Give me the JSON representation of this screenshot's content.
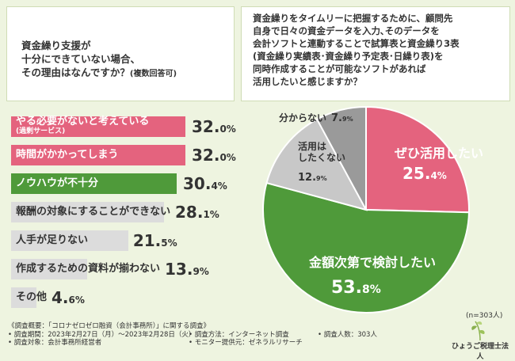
{
  "left_question": {
    "line1": "資金繰り支援が",
    "line2": "十分にできていない場合、",
    "line3": "その理由はなんですか？",
    "note": "(複数回答可)"
  },
  "right_question": {
    "text": "資金繰りをタイムリーに把握するために、顧問先\n自身で日々の資金データを入力､そのデータを\n会計ソフトと連動することで試算表と資金繰り3表\n(資金繰り実績表･資金繰り予定表･日繰り表)を\n同時作成することが可能なソフトがあれば\n活用したいと感じますか？"
  },
  "bars": [
    {
      "label": "やる必要がないと考えている",
      "sublabel": "(過剰サービス)",
      "value_main": "32.",
      "value_dec": "0%",
      "value": 32.0,
      "color": "#e4637e"
    },
    {
      "label": "時間がかかってしまう",
      "sublabel": "",
      "value_main": "32.",
      "value_dec": "0%",
      "value": 32.0,
      "color": "#e4637e"
    },
    {
      "label": "ノウハウが不十分",
      "sublabel": "",
      "value_main": "30.",
      "value_dec": "4%",
      "value": 30.4,
      "color": "#4f9a3a"
    },
    {
      "label": "報酬の対象にすることができない",
      "sublabel": "",
      "value_main": "28.",
      "value_dec": "1%",
      "value": 28.1,
      "color": "#dcdcdc"
    },
    {
      "label": "人手が足りない",
      "sublabel": "",
      "value_main": "21.",
      "value_dec": "5%",
      "value": 21.5,
      "color": "#dcdcdc"
    },
    {
      "label": "作成するための資料が揃わない",
      "sublabel": "",
      "value_main": "13.",
      "value_dec": "9%",
      "value": 13.9,
      "color": "#dcdcdc"
    },
    {
      "label": "その他",
      "sublabel": "",
      "value_main": "4.",
      "value_dec": "6%",
      "value": 4.6,
      "color": "#dcdcdc"
    }
  ],
  "pie": {
    "slices": [
      {
        "name": "ぜひ活用したい",
        "value_main": "25.",
        "value_dec": "4%",
        "value": 25.4,
        "color": "#e4637e"
      },
      {
        "name": "金額次第で検討したい",
        "value_main": "53.",
        "value_dec": "8%",
        "value": 53.8,
        "color": "#4f9a3a"
      },
      {
        "name": "活用は\nしたくない",
        "value_main": "12.",
        "value_dec": "9%",
        "value": 12.9,
        "color": "#c8c8c8"
      },
      {
        "name": "分からない",
        "value_main": "7.",
        "value_dec": "9%",
        "value": 7.9,
        "color": "#9a9a9a"
      }
    ],
    "n_note": "(n=303人)"
  },
  "footer": {
    "title": "《調査概要：「コロナゼロゼロ融資（会計事務所）」に関する調査》",
    "period": "• 調査期間：2023年2月27日（月）～2023年2月28日（火）",
    "method": "• 調査方法：インターネット調査",
    "count": "• 調査人数：303人",
    "target": "• 調査対象：会計事務所経営者",
    "monitor": "• モニター提供元：ゼネラルリサーチ"
  },
  "logo": {
    "text": "ひょうご税理士法人"
  }
}
